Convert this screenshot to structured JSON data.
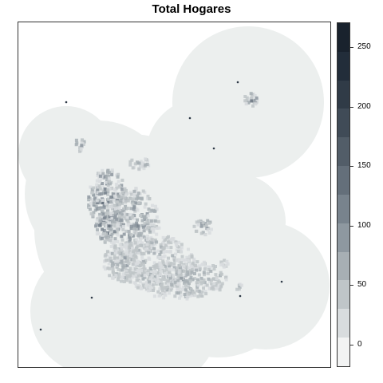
{
  "title": "Total Hogares",
  "legend": {
    "min": -18,
    "max": 270,
    "ticks": [
      0,
      50,
      100,
      150,
      200,
      250
    ],
    "colors": [
      "#f2f3f3",
      "#d8dcde",
      "#bfc5c8",
      "#a7afb4",
      "#8e98a0",
      "#78838d",
      "#646f7a",
      "#525d68",
      "#404b57",
      "#303b47",
      "#222d3a",
      "#19222d"
    ]
  },
  "map": {
    "background_color": "#ecefee",
    "point_color": "#2f3a47"
  }
}
